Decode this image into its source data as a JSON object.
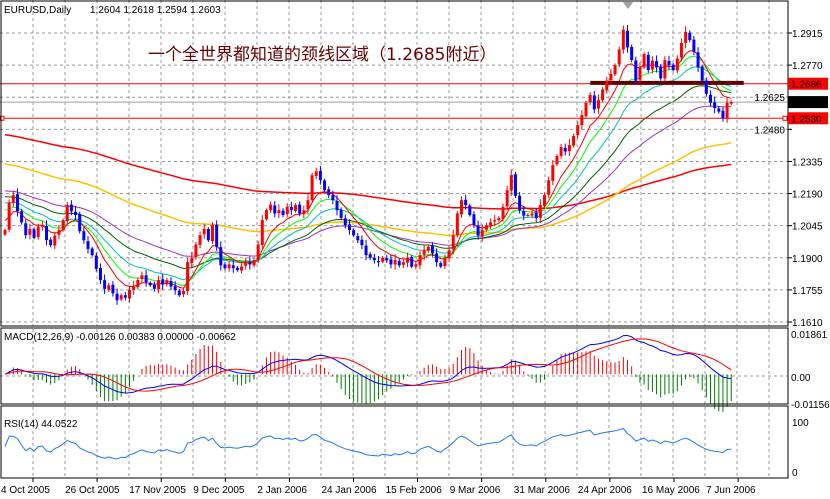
{
  "header": {
    "symbol": "EURUSD,Daily",
    "ohlc": "1.2604 1.2618 1.2594 1.2603"
  },
  "annotation": "一个全世界都知道的颈线区域（1.2685附近）",
  "colors": {
    "bull": "#ff0000",
    "bear": "#0000ff",
    "neckline": "#5c0000",
    "level": "#ff0000",
    "bg": "#ffffff",
    "grid": "#999999"
  },
  "chart_data": [
    {
      "type": "candlestick",
      "title": "EURUSD,Daily",
      "y_ticks": [
        "1.2915",
        "1.2770",
        "1.2625",
        "1.2480",
        "1.2335",
        "1.2190",
        "1.2045",
        "1.1900",
        "1.1755",
        "1.1610"
      ],
      "ylim": [
        1.161,
        1.2915
      ],
      "x_ticks": [
        "4 Oct 2005",
        "26 Oct 2005",
        "17 Nov 2005",
        "9 Dec 2005",
        "2 Jan 2006",
        "24 Jan 2006",
        "15 Feb 2006",
        "9 Mar 2006",
        "31 Mar 2006",
        "24 Apr 2006",
        "16 May 2006",
        "7 Jun 2006"
      ],
      "grid": true,
      "price_labels": [
        {
          "text": "1.2686",
          "value": 1.2686,
          "style": "red"
        },
        {
          "text": "1.2603",
          "value": 1.2603,
          "style": "black"
        },
        {
          "text": "1.2530",
          "value": 1.253,
          "style": "red"
        }
      ],
      "horizontal_lines": [
        {
          "value": 1.2686,
          "color": "#ff0000"
        },
        {
          "value": 1.253,
          "color": "#ff0000"
        },
        {
          "value": 1.2603,
          "color": "#a0a0a0"
        }
      ],
      "neckline": {
        "value": 1.269,
        "from_bar": 142,
        "to_bar": 178
      },
      "closes": [
        1.2025,
        1.215,
        1.2183,
        1.211,
        1.206,
        1.2002,
        1.203,
        1.199,
        1.204,
        1.2047,
        1.198,
        1.1957,
        1.2,
        1.2025,
        1.207,
        1.2138,
        1.211,
        1.2093,
        1.202,
        1.1979,
        1.194,
        1.1912,
        1.185,
        1.1799,
        1.176,
        1.1776,
        1.174,
        1.1708,
        1.1731,
        1.172,
        1.1754,
        1.177,
        1.18,
        1.1821,
        1.179,
        1.1776,
        1.176,
        1.1799,
        1.178,
        1.1799,
        1.177,
        1.1754,
        1.1731,
        1.175,
        1.188,
        1.19,
        1.196,
        1.2002,
        1.203,
        1.1979,
        1.2047,
        1.195,
        1.1866,
        1.1853,
        1.187,
        1.1853,
        1.1844,
        1.186,
        1.188,
        1.187,
        1.1889,
        1.196,
        1.207,
        1.2115,
        1.214,
        1.21,
        1.2115,
        1.2093,
        1.213,
        1.2115,
        1.2138,
        1.21,
        1.2115,
        1.216,
        1.2273,
        1.229,
        1.2251,
        1.2205,
        1.2183,
        1.216,
        1.2115,
        1.208,
        1.2047,
        1.2025,
        1.2002,
        1.1979,
        1.1957,
        1.1912,
        1.19,
        1.1889,
        1.188,
        1.19,
        1.1889,
        1.187,
        1.189,
        1.1866,
        1.188,
        1.19,
        1.186,
        1.187,
        1.1912,
        1.1934,
        1.195,
        1.192,
        1.188,
        1.186,
        1.19,
        1.1934,
        1.2002,
        1.21,
        1.216,
        1.2138,
        1.2093,
        1.2047,
        1.2,
        1.2025,
        1.2047,
        1.206,
        1.207,
        1.208,
        1.213,
        1.2205,
        1.2273,
        1.218,
        1.2115,
        1.209,
        1.2093,
        1.21,
        1.208,
        1.2138,
        1.2183,
        1.225,
        1.2318,
        1.236,
        1.24,
        1.238,
        1.2409,
        1.245,
        1.2499,
        1.2544,
        1.26,
        1.2635,
        1.257,
        1.2612,
        1.266,
        1.27,
        1.273,
        1.277,
        1.284,
        1.2929,
        1.285,
        1.2793,
        1.27,
        1.276,
        1.282,
        1.2748,
        1.279,
        1.276,
        1.271,
        1.2793,
        1.277,
        1.2748,
        1.28,
        1.287,
        1.292,
        1.2883,
        1.283,
        1.276,
        1.27,
        1.264,
        1.26,
        1.2576,
        1.256,
        1.253,
        1.26,
        1.2603
      ],
      "moving_averages": [
        {
          "period": 200,
          "color": "#ff0000",
          "start": 1.246
        },
        {
          "period": 100,
          "color": "#ffc000",
          "start": 1.233
        },
        {
          "period": 50,
          "color": "#9933cc",
          "start": 1.221
        },
        {
          "period": 34,
          "color": "#006400",
          "start": 1.2185
        },
        {
          "period": 21,
          "color": "#00c0c0",
          "start": 1.216
        },
        {
          "period": 13,
          "color": "#00ff00",
          "start": 1.213
        },
        {
          "period": 8,
          "color": "#ff0000",
          "start": 1.208
        }
      ]
    },
    {
      "type": "line",
      "title": "MACD(12,26,9) -0.00126 0.00383 0.00000 -0.00662",
      "y_ticks": [
        "0.01861",
        "0.00",
        "-0.01156"
      ],
      "ylim": [
        -0.01156,
        0.01861
      ],
      "series_colors": {
        "macd": "#0000ff",
        "signal": "#ff0000",
        "hist_pos": "#ff0000",
        "hist_neg": "#008000"
      }
    },
    {
      "type": "line",
      "title": "RSI(14) 44.0522",
      "y_ticks": [
        "100",
        "0"
      ],
      "ylim": [
        0,
        100
      ],
      "color": "#1e78ff"
    }
  ]
}
